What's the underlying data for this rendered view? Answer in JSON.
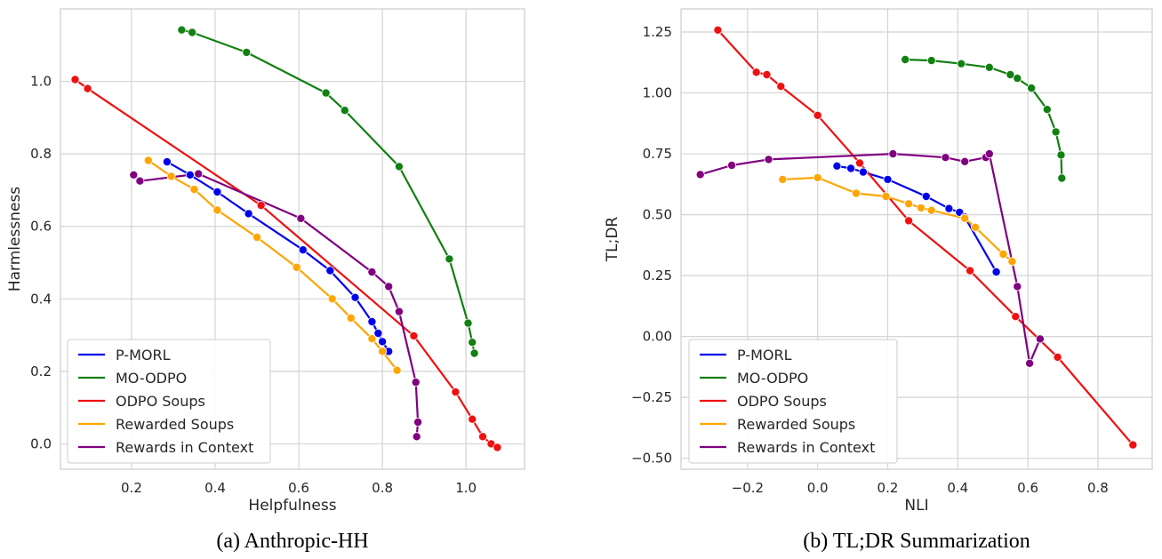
{
  "colors": {
    "P-MORL": "#0000ee",
    "MO-ODPO": "#128012",
    "ODPO Soups": "#ee1111",
    "Rewarded Soups": "#ffa500",
    "Rewards in Context": "#800080",
    "grid": "#d4d4d4",
    "frame": "#cccccc"
  },
  "chart_data": [
    {
      "type": "line",
      "caption": "(a) Anthropic-HH",
      "xlabel": "Helpfulness",
      "ylabel": "Harmlessness",
      "xlim": [
        0.03,
        1.14
      ],
      "ylim": [
        -0.07,
        1.2
      ],
      "xticks": [
        0.2,
        0.4,
        0.6,
        0.8,
        1.0
      ],
      "xtick_labels": [
        "0.2",
        "0.4",
        "0.6",
        "0.8",
        "1.0"
      ],
      "yticks": [
        0.0,
        0.2,
        0.4,
        0.6,
        0.8,
        1.0
      ],
      "ytick_labels": [
        "0.0",
        "0.2",
        "0.4",
        "0.6",
        "0.8",
        "1.0"
      ],
      "grid": true,
      "legend_position": "lower-left",
      "series": [
        {
          "name": "P-MORL",
          "points": [
            [
              0.285,
              0.778
            ],
            [
              0.34,
              0.742
            ],
            [
              0.405,
              0.695
            ],
            [
              0.48,
              0.635
            ],
            [
              0.61,
              0.535
            ],
            [
              0.675,
              0.478
            ],
            [
              0.735,
              0.404
            ],
            [
              0.775,
              0.337
            ],
            [
              0.79,
              0.305
            ],
            [
              0.8,
              0.282
            ],
            [
              0.815,
              0.255
            ]
          ]
        },
        {
          "name": "MO-ODPO",
          "points": [
            [
              0.32,
              1.142
            ],
            [
              0.345,
              1.135
            ],
            [
              0.475,
              1.08
            ],
            [
              0.665,
              0.968
            ],
            [
              0.71,
              0.92
            ],
            [
              0.84,
              0.765
            ],
            [
              0.96,
              0.51
            ],
            [
              1.005,
              0.333
            ],
            [
              1.015,
              0.28
            ],
            [
              1.02,
              0.25
            ]
          ]
        },
        {
          "name": "ODPO Soups",
          "points": [
            [
              0.065,
              1.005
            ],
            [
              0.095,
              0.98
            ],
            [
              0.51,
              0.658
            ],
            [
              0.875,
              0.298
            ],
            [
              0.975,
              0.143
            ],
            [
              1.015,
              0.068
            ],
            [
              1.04,
              0.02
            ],
            [
              1.06,
              0.0
            ],
            [
              1.075,
              -0.01
            ]
          ]
        },
        {
          "name": "Rewarded Soups",
          "points": [
            [
              0.24,
              0.782
            ],
            [
              0.295,
              0.738
            ],
            [
              0.35,
              0.702
            ],
            [
              0.405,
              0.645
            ],
            [
              0.5,
              0.57
            ],
            [
              0.595,
              0.487
            ],
            [
              0.68,
              0.4
            ],
            [
              0.725,
              0.347
            ],
            [
              0.775,
              0.29
            ],
            [
              0.8,
              0.255
            ],
            [
              0.835,
              0.203
            ]
          ]
        },
        {
          "name": "Rewards in Context",
          "points": [
            [
              0.205,
              0.742
            ],
            [
              0.22,
              0.725
            ],
            [
              0.36,
              0.745
            ],
            [
              0.605,
              0.622
            ],
            [
              0.775,
              0.474
            ],
            [
              0.815,
              0.434
            ],
            [
              0.84,
              0.365
            ],
            [
              0.88,
              0.17
            ],
            [
              0.885,
              0.06
            ],
            [
              0.882,
              0.02
            ]
          ]
        }
      ]
    },
    {
      "type": "line",
      "caption": "(b) TL;DR Summarization",
      "xlabel": "NLI",
      "ylabel": "TL;DR",
      "xlim": [
        -0.39,
        0.955
      ],
      "ylim": [
        -0.545,
        1.345
      ],
      "xticks": [
        -0.2,
        0.0,
        0.2,
        0.4,
        0.6,
        0.8
      ],
      "xtick_labels": [
        "−0.2",
        "0.0",
        "0.2",
        "0.4",
        "0.6",
        "0.8"
      ],
      "yticks": [
        -0.5,
        -0.25,
        0.0,
        0.25,
        0.5,
        0.75,
        1.0,
        1.25
      ],
      "ytick_labels": [
        "−0.50",
        "−0.25",
        "0.00",
        "0.25",
        "0.50",
        "0.75",
        "1.00",
        "1.25"
      ],
      "grid": true,
      "legend_position": "lower-left",
      "series": [
        {
          "name": "P-MORL",
          "points": [
            [
              0.055,
              0.7
            ],
            [
              0.095,
              0.69
            ],
            [
              0.13,
              0.675
            ],
            [
              0.2,
              0.645
            ],
            [
              0.31,
              0.575
            ],
            [
              0.375,
              0.525
            ],
            [
              0.405,
              0.51
            ],
            [
              0.42,
              0.49
            ],
            [
              0.51,
              0.265
            ]
          ]
        },
        {
          "name": "MO-ODPO",
          "points": [
            [
              0.25,
              1.137
            ],
            [
              0.325,
              1.133
            ],
            [
              0.41,
              1.12
            ],
            [
              0.49,
              1.105
            ],
            [
              0.55,
              1.075
            ],
            [
              0.57,
              1.06
            ],
            [
              0.61,
              1.02
            ],
            [
              0.655,
              0.932
            ],
            [
              0.68,
              0.84
            ],
            [
              0.695,
              0.745
            ],
            [
              0.697,
              0.65
            ]
          ]
        },
        {
          "name": "ODPO Soups",
          "points": [
            [
              -0.285,
              1.258
            ],
            [
              -0.175,
              1.085
            ],
            [
              -0.145,
              1.075
            ],
            [
              -0.105,
              1.027
            ],
            [
              0.0,
              0.908
            ],
            [
              0.12,
              0.712
            ],
            [
              0.26,
              0.475
            ],
            [
              0.435,
              0.27
            ],
            [
              0.565,
              0.082
            ],
            [
              0.685,
              -0.085
            ],
            [
              0.9,
              -0.445
            ]
          ]
        },
        {
          "name": "Rewarded Soups",
          "points": [
            [
              -0.1,
              0.645
            ],
            [
              0.0,
              0.652
            ],
            [
              0.11,
              0.588
            ],
            [
              0.195,
              0.575
            ],
            [
              0.26,
              0.545
            ],
            [
              0.295,
              0.528
            ],
            [
              0.325,
              0.518
            ],
            [
              0.42,
              0.485
            ],
            [
              0.45,
              0.448
            ],
            [
              0.53,
              0.338
            ],
            [
              0.555,
              0.308
            ]
          ]
        },
        {
          "name": "Rewards in Context",
          "points": [
            [
              -0.335,
              0.665
            ],
            [
              -0.245,
              0.703
            ],
            [
              -0.14,
              0.727
            ],
            [
              0.215,
              0.75
            ],
            [
              0.365,
              0.735
            ],
            [
              0.42,
              0.718
            ],
            [
              0.48,
              0.735
            ],
            [
              0.49,
              0.75
            ],
            [
              0.57,
              0.205
            ],
            [
              0.605,
              -0.11
            ],
            [
              0.635,
              -0.01
            ]
          ]
        }
      ]
    }
  ]
}
